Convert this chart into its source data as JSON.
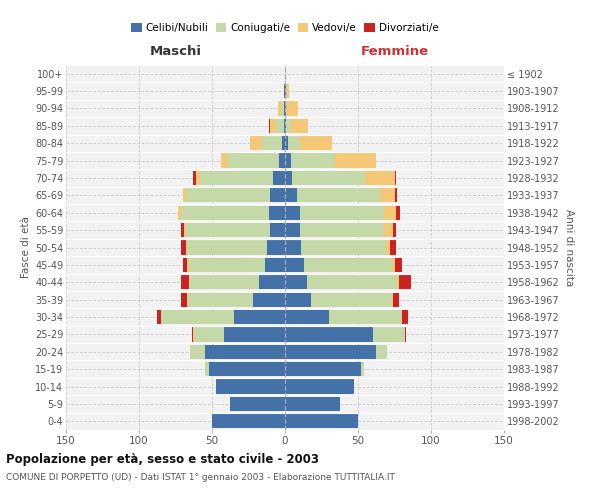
{
  "age_groups": [
    "0-4",
    "5-9",
    "10-14",
    "15-19",
    "20-24",
    "25-29",
    "30-34",
    "35-39",
    "40-44",
    "45-49",
    "50-54",
    "55-59",
    "60-64",
    "65-69",
    "70-74",
    "75-79",
    "80-84",
    "85-89",
    "90-94",
    "95-99",
    "100+"
  ],
  "birth_years": [
    "1998-2002",
    "1993-1997",
    "1988-1992",
    "1983-1987",
    "1978-1982",
    "1973-1977",
    "1968-1972",
    "1963-1967",
    "1958-1962",
    "1953-1957",
    "1948-1952",
    "1943-1947",
    "1938-1942",
    "1933-1937",
    "1928-1932",
    "1923-1927",
    "1918-1922",
    "1913-1917",
    "1908-1912",
    "1903-1907",
    "≤ 1902"
  ],
  "maschi": {
    "celibi": [
      50,
      38,
      47,
      52,
      55,
      42,
      35,
      22,
      18,
      14,
      12,
      10,
      11,
      10,
      8,
      4,
      2,
      1,
      1,
      1,
      0
    ],
    "coniugati": [
      0,
      0,
      0,
      3,
      10,
      20,
      50,
      45,
      48,
      52,
      55,
      58,
      60,
      58,
      50,
      35,
      14,
      5,
      2,
      0,
      0
    ],
    "vedovi": [
      0,
      0,
      0,
      0,
      0,
      1,
      0,
      0,
      0,
      1,
      1,
      1,
      2,
      2,
      3,
      5,
      8,
      4,
      2,
      0,
      0
    ],
    "divorziati": [
      0,
      0,
      0,
      0,
      0,
      1,
      3,
      4,
      5,
      3,
      3,
      2,
      0,
      0,
      2,
      0,
      0,
      1,
      0,
      0,
      0
    ]
  },
  "femmine": {
    "nubili": [
      50,
      38,
      47,
      52,
      62,
      60,
      30,
      18,
      15,
      13,
      11,
      10,
      10,
      8,
      5,
      4,
      2,
      1,
      1,
      1,
      0
    ],
    "coniugate": [
      0,
      0,
      0,
      2,
      8,
      22,
      50,
      55,
      62,
      60,
      58,
      58,
      58,
      57,
      50,
      30,
      8,
      3,
      0,
      0,
      0
    ],
    "vedove": [
      0,
      0,
      0,
      0,
      0,
      0,
      0,
      1,
      1,
      2,
      3,
      6,
      8,
      10,
      20,
      28,
      22,
      12,
      8,
      2,
      0
    ],
    "divorziate": [
      0,
      0,
      0,
      0,
      0,
      1,
      4,
      4,
      8,
      5,
      4,
      2,
      3,
      2,
      1,
      0,
      0,
      0,
      0,
      0,
      0
    ]
  },
  "color_celibi": "#4472a8",
  "color_coniugati": "#c5d9a8",
  "color_vedovi": "#f5c878",
  "color_divorziati": "#cc2222",
  "color_background": "#f2f2f2",
  "color_grid": "#cccccc",
  "title": "Popolazione per età, sesso e stato civile - 2003",
  "subtitle": "COMUNE DI PORPETTO (UD) - Dati ISTAT 1° gennaio 2003 - Elaborazione TUTTITALIA.IT",
  "xlabel_maschi": "Maschi",
  "xlabel_femmine": "Femmine",
  "ylabel_left": "Fasce di età",
  "ylabel_right": "Anni di nascita",
  "xlim": 150
}
